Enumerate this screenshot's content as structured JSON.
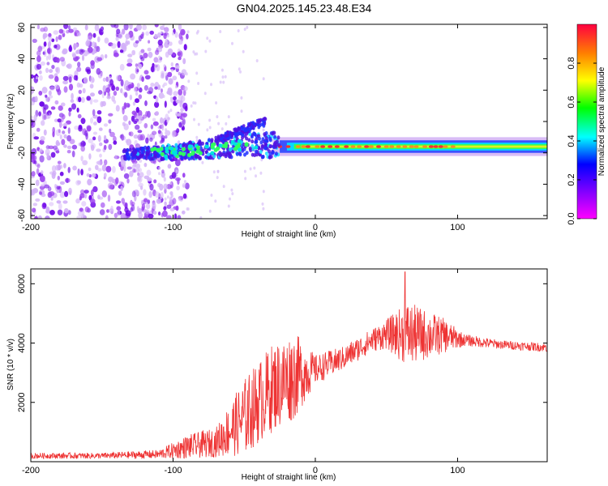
{
  "title": "GN04.2025.145.23.48.E34",
  "colors": {
    "snr_line": "#ee3333",
    "frame": "#000000"
  },
  "chart_data": [
    {
      "type": "heatmap",
      "name": "spectrogram",
      "xlabel": "Height of straight line (km)",
      "ylabel": "Frequency (Hz)",
      "xlim": [
        -200,
        163
      ],
      "ylim": [
        -62,
        62
      ],
      "xticks": [
        -200,
        -100,
        0,
        100
      ],
      "yticks": [
        60,
        40,
        20,
        0,
        -20,
        -40,
        -60
      ],
      "grid": false,
      "colorbar": {
        "label": "Normalized spectral amplitude",
        "range": [
          0.0,
          1.0
        ],
        "ticks": [
          0.0,
          0.2,
          0.4,
          0.6,
          0.8
        ],
        "colormap": "gist_rainbow_r",
        "stops": [
          "#ff00ff",
          "#8000ff",
          "#0000ff",
          "#00ffff",
          "#00ff00",
          "#ffff00",
          "#ff8000",
          "#ff0040"
        ]
      },
      "features": {
        "noise_region_x": [
          -200,
          -100
        ],
        "signal_track": [
          {
            "x": -135,
            "y": -21
          },
          {
            "x": -110,
            "y": -20
          },
          {
            "x": -80,
            "y": -18
          },
          {
            "x": -50,
            "y": -15
          },
          {
            "x": -25,
            "y": -15
          },
          {
            "x": 0,
            "y": -16
          },
          {
            "x": 100,
            "y": -16
          },
          {
            "x": 163,
            "y": -16
          }
        ],
        "rising_branch": [
          {
            "x": -70,
            "y": -12
          },
          {
            "x": -45,
            "y": -3
          },
          {
            "x": -35,
            "y": 0
          }
        ]
      }
    },
    {
      "type": "line",
      "name": "snr",
      "xlabel": "Height of straight line (km)",
      "ylabel": "SNR (10 * v/v)",
      "xlim": [
        -200,
        163
      ],
      "ylim": [
        0,
        6500
      ],
      "xticks": [
        -200,
        -100,
        0,
        100
      ],
      "yticks": [
        2000,
        4000,
        6000
      ],
      "grid": false,
      "series": [
        {
          "color": "#ee3333",
          "envelope": [
            {
              "x": -200,
              "mean": 200,
              "spread": 100
            },
            {
              "x": -150,
              "mean": 200,
              "spread": 100
            },
            {
              "x": -110,
              "mean": 250,
              "spread": 150
            },
            {
              "x": -90,
              "mean": 500,
              "spread": 400
            },
            {
              "x": -70,
              "mean": 650,
              "spread": 500
            },
            {
              "x": -50,
              "mean": 1500,
              "spread": 1300
            },
            {
              "x": -30,
              "mean": 2500,
              "spread": 1500
            },
            {
              "x": -15,
              "mean": 2900,
              "spread": 1500
            },
            {
              "x": 0,
              "mean": 3100,
              "spread": 500
            },
            {
              "x": 20,
              "mean": 3500,
              "spread": 400
            },
            {
              "x": 40,
              "mean": 4100,
              "spread": 400
            },
            {
              "x": 50,
              "mean": 4300,
              "spread": 500
            },
            {
              "x": 65,
              "mean": 4300,
              "spread": 1100
            },
            {
              "x": 90,
              "mean": 4250,
              "spread": 600
            },
            {
              "x": 105,
              "mean": 4100,
              "spread": 200
            },
            {
              "x": 130,
              "mean": 3950,
              "spread": 150
            },
            {
              "x": 163,
              "mean": 3850,
              "spread": 150
            }
          ],
          "peak": {
            "x": 63,
            "y": 6400
          }
        }
      ]
    }
  ]
}
